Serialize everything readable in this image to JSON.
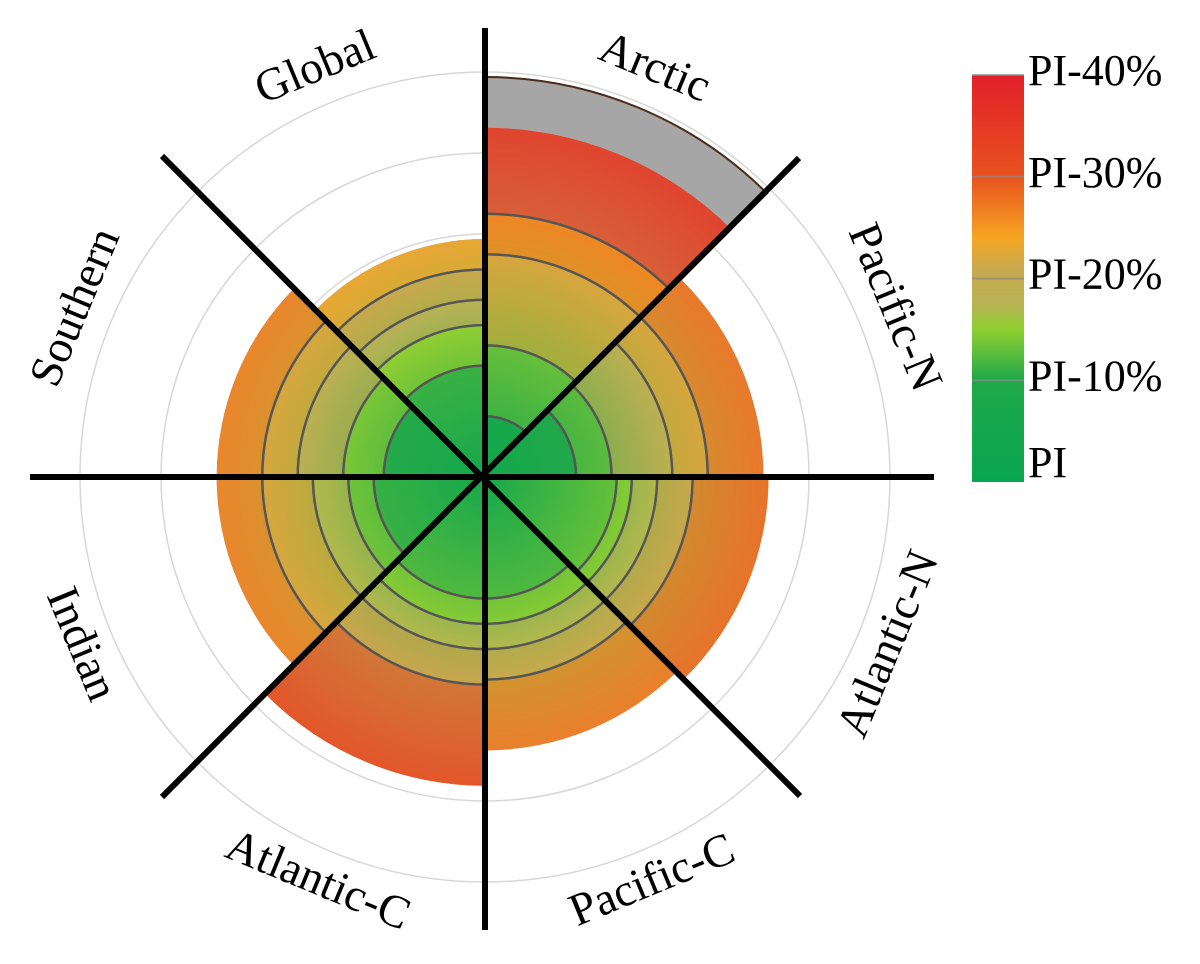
{
  "chart_data": {
    "type": "polar-area",
    "title": "",
    "sectors": [
      "Arctic",
      "Pacific-N",
      "Atlantic-N",
      "Pacific-C",
      "Atlantic-C",
      "Indian",
      "Southern",
      "Global"
    ],
    "radial_scale": {
      "unit": "% above PI",
      "gridlines": [
        8,
        16,
        24,
        32,
        40
      ],
      "max": 40
    },
    "layers": [
      {
        "values": [
          39.5,
          27.5,
          28,
          27,
          30.5,
          26.5,
          26.5,
          23.5
        ],
        "style": "shade"
      },
      {
        "values": [
          34.5,
          27.5,
          28,
          27,
          30.5,
          26.5,
          26.5,
          23.5
        ],
        "style": "colored"
      },
      {
        "values": [
          26,
          22,
          20.5,
          20,
          20.5,
          22,
          22,
          20.5
        ],
        "style": "colored-edge"
      },
      {
        "values": [
          22,
          18.5,
          17,
          17,
          17,
          17,
          18.5,
          17.5
        ],
        "style": "colored-edge"
      },
      {
        "values": [
          13,
          12.5,
          14.5,
          14.5,
          14.5,
          13.5,
          14,
          15
        ],
        "style": "colored-edge"
      },
      {
        "values": [
          6,
          9,
          13,
          12,
          12,
          11,
          10,
          11
        ],
        "style": "colored-edge"
      }
    ],
    "colorbar": {
      "labels": [
        "PI-40%",
        "PI-30%",
        "PI-20%",
        "PI-10%",
        "PI"
      ],
      "stops": [
        {
          "value": 0,
          "color": "#08a650"
        },
        {
          "value": 10,
          "color": "#1fa84a"
        },
        {
          "value": 15,
          "color": "#8fd030"
        },
        {
          "value": 17.5,
          "color": "#b9b355"
        },
        {
          "value": 21,
          "color": "#c8a94e"
        },
        {
          "value": 24,
          "color": "#f6a623"
        },
        {
          "value": 30,
          "color": "#e8521f"
        },
        {
          "value": 40,
          "color": "#e2202a"
        }
      ]
    },
    "colors": {
      "shade": "#a6a6a6",
      "separator": "#000000",
      "grid": "#d7d7d7",
      "edge": "#555555"
    }
  }
}
